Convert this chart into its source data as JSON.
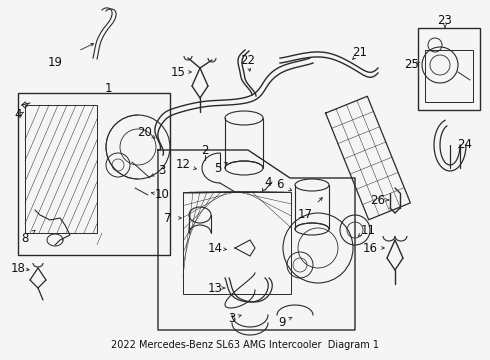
{
  "title": "2022 Mercedes-Benz SL63 AMG Intercooler  Diagram 1",
  "bg_color": "#f5f5f5",
  "line_color": "#2a2a2a",
  "label_color": "#111111",
  "font_size_label": 8.5,
  "font_size_title": 7.0,
  "fig_width": 4.9,
  "fig_height": 3.6,
  "dpi": 100
}
